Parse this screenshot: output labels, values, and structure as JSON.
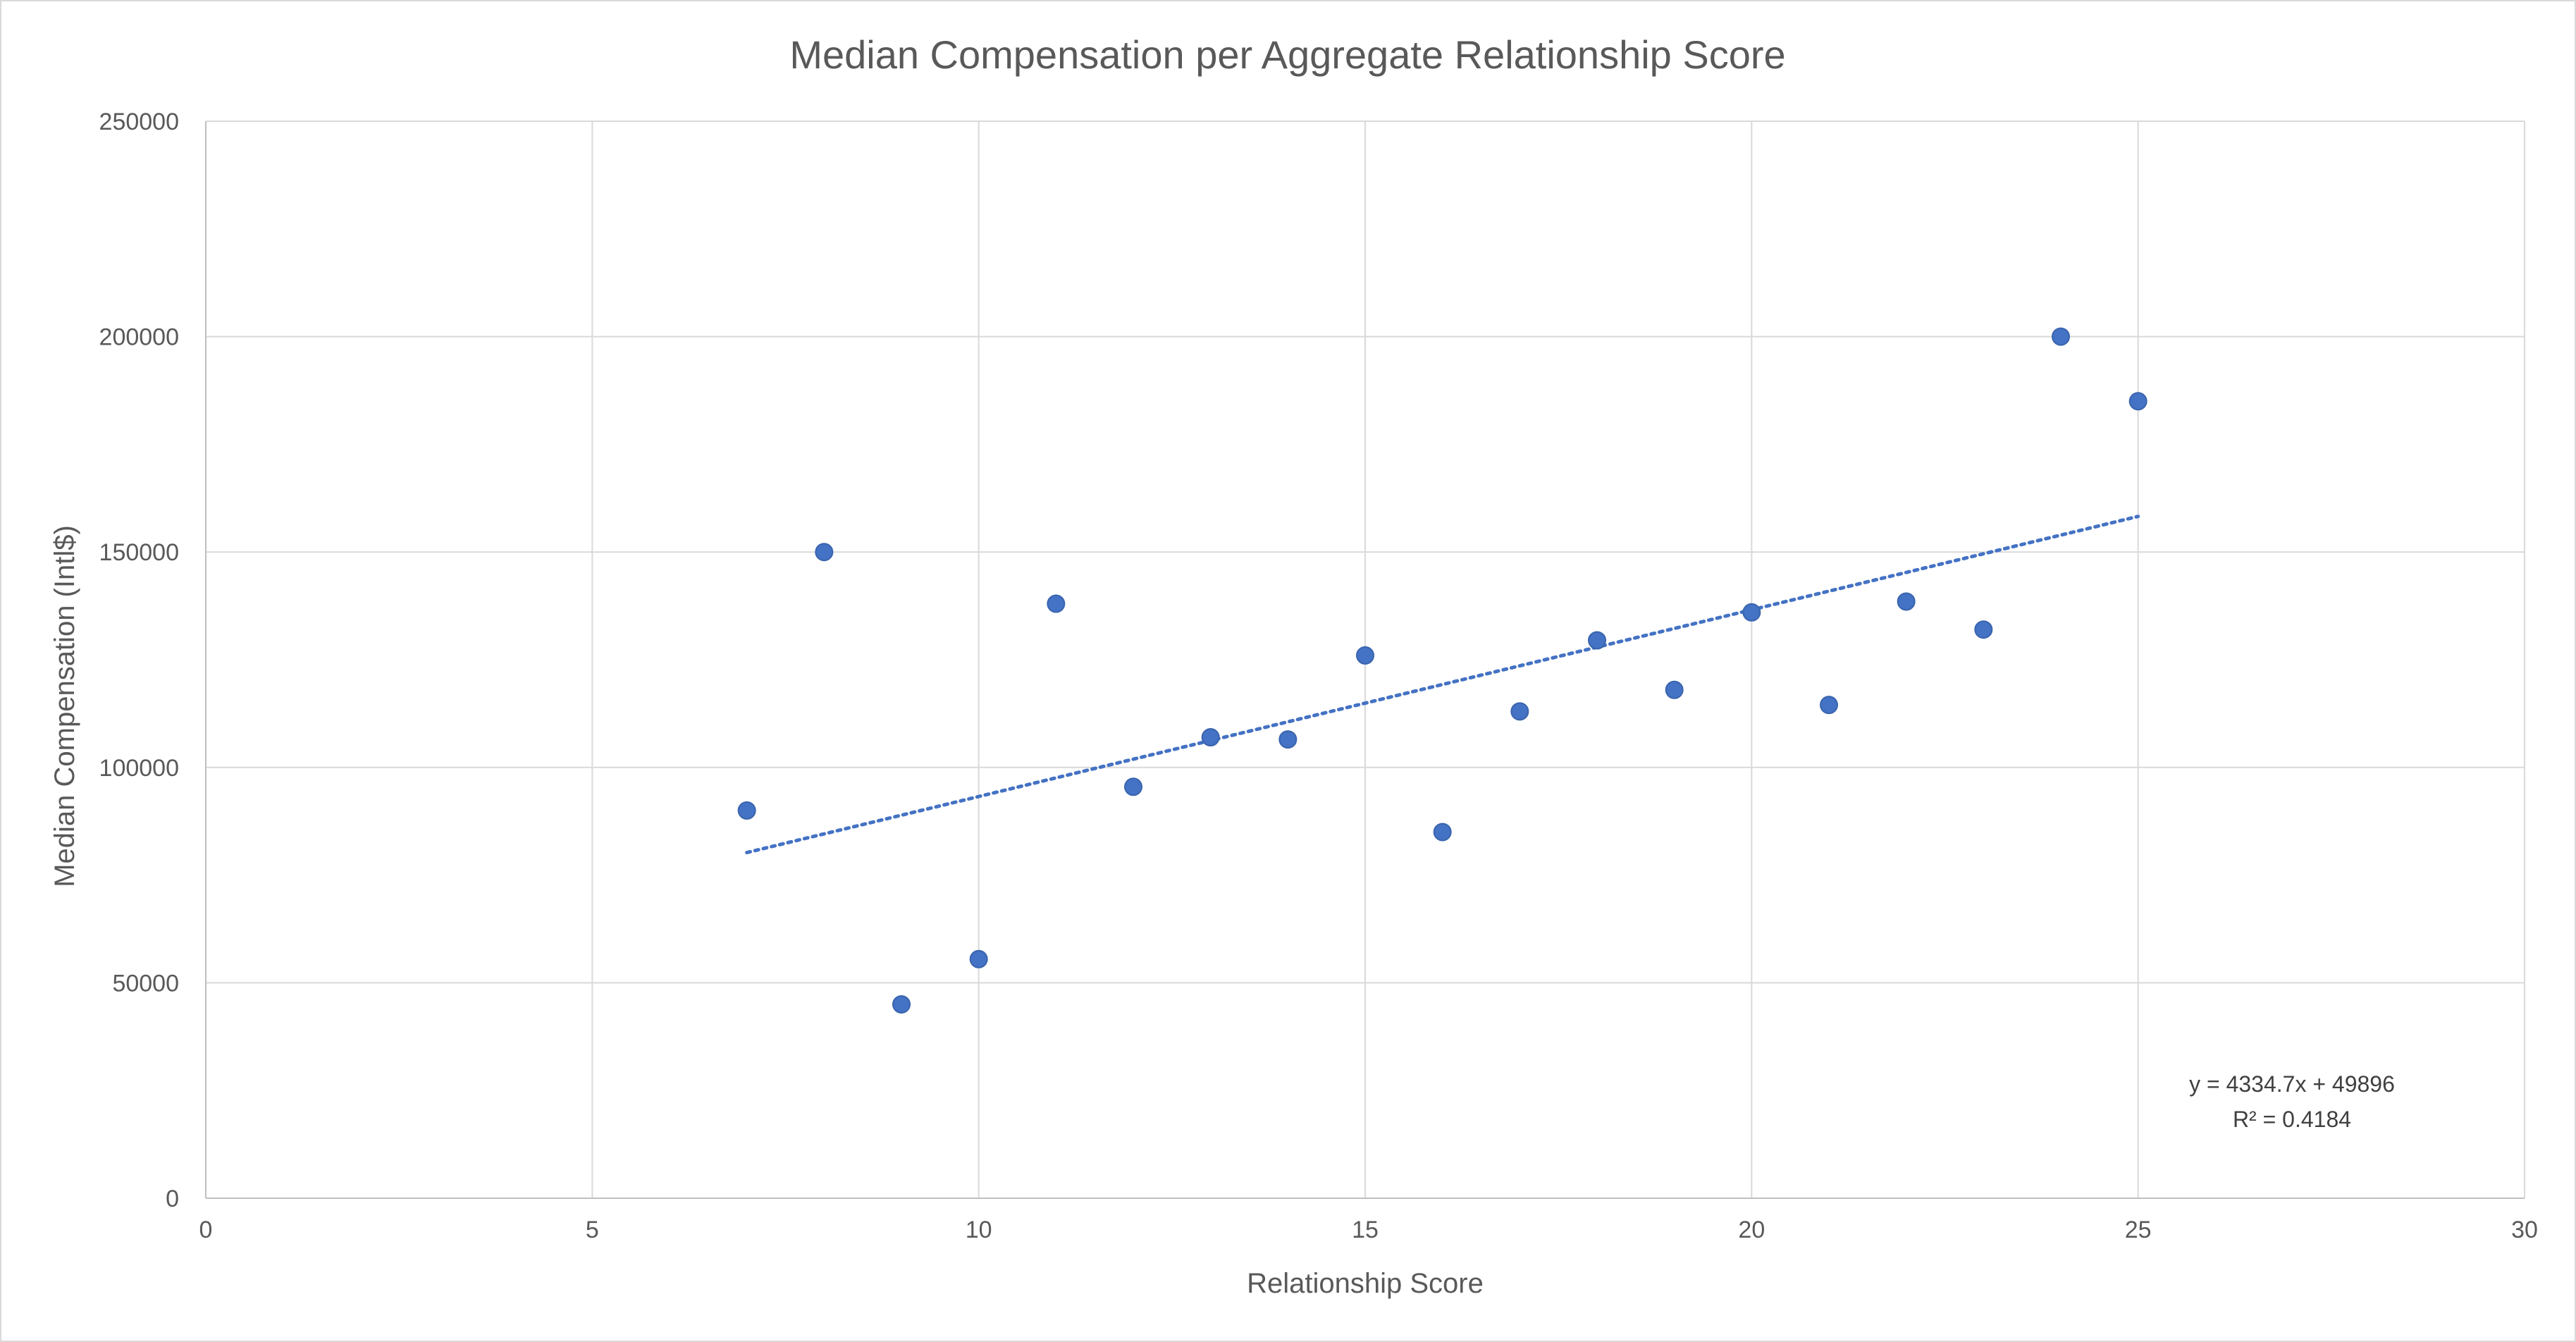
{
  "chart_data": {
    "type": "scatter",
    "title": "Median Compensation per Aggregate Relationship Score",
    "xlabel": "Relationship Score",
    "ylabel": "Median Compensation (Intl$)",
    "xlim": [
      0,
      30
    ],
    "ylim": [
      0,
      250000
    ],
    "x_ticks": [
      "0",
      "5",
      "10",
      "15",
      "20",
      "25",
      "30"
    ],
    "y_ticks": [
      "0",
      "50000",
      "100000",
      "150000",
      "200000",
      "250000"
    ],
    "grid": true,
    "legend": "none",
    "marker_color": "#4472c4",
    "series": [
      {
        "x": [
          7,
          8,
          9,
          10,
          11,
          12,
          13,
          14,
          15,
          16,
          17,
          18,
          19,
          20,
          21,
          22,
          23,
          24,
          25
        ],
        "y": [
          90000,
          150000,
          45000,
          55500,
          138000,
          95500,
          107000,
          106500,
          126000,
          85000,
          113000,
          129500,
          118000,
          136000,
          114500,
          138500,
          132000,
          200000,
          185000
        ]
      }
    ],
    "trendline": {
      "type": "linear",
      "slope": 4334.7,
      "intercept": 49896,
      "x_range": [
        7,
        25
      ],
      "style": "dotted",
      "color": "#4472c4",
      "equation_label": "y = 4334.7x + 49896",
      "r2_label": "R² = 0.4184"
    }
  }
}
